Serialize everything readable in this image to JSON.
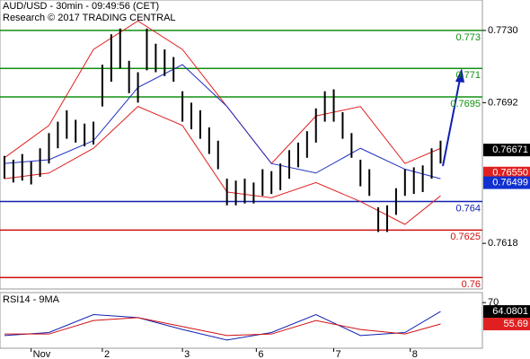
{
  "chart_data": [
    {
      "type": "range-bar",
      "title": "AUD/USD - 30min - 09:49:56 (CET)",
      "subtitle": "Research © 2017 TRADING CENTRAL",
      "xlim": [
        -0.5,
        53.7
      ],
      "ylim": [
        0.7594,
        0.7746
      ],
      "xticks": [
        {
          "value": 3,
          "label": "Nov"
        },
        {
          "value": 11,
          "label": "2"
        },
        {
          "value": 20,
          "label": "3"
        },
        {
          "value": 28.3,
          "label": "6"
        },
        {
          "value": 37,
          "label": "7"
        },
        {
          "value": 45.6,
          "label": "8"
        }
      ],
      "yticks": [
        {
          "value": 0.773,
          "label": "0.7730"
        },
        {
          "value": 0.7692,
          "label": "0.7692"
        },
        {
          "value": 0.7618,
          "label": "0.7618"
        }
      ],
      "bar_color": "#000000",
      "high": [
        0.7664,
        0.7662,
        0.7665,
        0.7661,
        0.7668,
        0.7676,
        0.7682,
        0.7688,
        0.7683,
        0.7681,
        0.7682,
        0.7712,
        0.7728,
        0.7731,
        0.7714,
        0.7708,
        0.7731,
        0.7723,
        0.772,
        0.7716,
        0.7698,
        0.7692,
        0.7688,
        0.7679,
        0.7672,
        0.7652,
        0.7651,
        0.7652,
        0.765,
        0.7657,
        0.7656,
        0.766,
        0.7667,
        0.7671,
        0.7677,
        0.7689,
        0.7698,
        0.7699,
        0.7687,
        0.7676,
        0.7662,
        0.7657,
        0.7637,
        0.7638,
        0.7647,
        0.7657,
        0.7658,
        0.7659,
        0.7668,
        0.7672
      ],
      "low": [
        0.7652,
        0.765,
        0.7651,
        0.7649,
        0.7653,
        0.766,
        0.7668,
        0.7673,
        0.7671,
        0.7669,
        0.767,
        0.769,
        0.7703,
        0.771,
        0.7697,
        0.7692,
        0.7709,
        0.7708,
        0.7706,
        0.7703,
        0.7682,
        0.7678,
        0.7673,
        0.7665,
        0.7657,
        0.7638,
        0.7638,
        0.7639,
        0.7639,
        0.7643,
        0.7644,
        0.7646,
        0.7652,
        0.7658,
        0.7663,
        0.7671,
        0.7682,
        0.7682,
        0.7673,
        0.7663,
        0.7648,
        0.7643,
        0.7624,
        0.7624,
        0.7633,
        0.7643,
        0.7644,
        0.7645,
        0.7652,
        0.766
      ],
      "overlay_x": [
        0,
        5,
        10,
        15,
        20,
        25,
        30,
        35,
        40,
        45,
        49
      ],
      "overlays": [
        {
          "color": "#e02020",
          "values": [
            0.7663,
            0.768,
            0.772,
            0.7735,
            0.772,
            0.769,
            0.766,
            0.7685,
            0.769,
            0.766,
            0.7668
          ]
        },
        {
          "color": "#2030c0",
          "values": [
            0.766,
            0.7662,
            0.7672,
            0.77,
            0.7712,
            0.769,
            0.766,
            0.7655,
            0.7668,
            0.7657,
            0.7652
          ]
        },
        {
          "color": "#e02020",
          "values": [
            0.7652,
            0.7655,
            0.7668,
            0.769,
            0.768,
            0.7645,
            0.7642,
            0.765,
            0.764,
            0.7628,
            0.7643
          ]
        }
      ],
      "levels": [
        {
          "value": 0.773,
          "color": "#109010"
        },
        {
          "value": 0.771,
          "color": "#109010"
        },
        {
          "value": 0.7695,
          "color": "#109010"
        },
        {
          "value": 0.764,
          "color": "#1020b0"
        },
        {
          "value": 0.7625,
          "color": "#d01010"
        },
        {
          "value": 0.76,
          "color": "#d01010"
        }
      ],
      "last_values": [
        {
          "value": 0.76671,
          "color": "#000000"
        },
        {
          "value": 0.7655,
          "value_label": "0.76550",
          "color": "#e02020"
        },
        {
          "value": 0.76499,
          "color": "#1030d0"
        }
      ]
    },
    {
      "type": "line",
      "title": "RSI14 - 9MA",
      "xlim": [
        -0.5,
        53.7
      ],
      "ylim": [
        39.5,
        76.7
      ],
      "yticks": [
        70
      ],
      "x": [
        0,
        5,
        10,
        15,
        20,
        25,
        30,
        35,
        40,
        45,
        49
      ],
      "series": [
        {
          "color": "#1020b0",
          "values": [
            48,
            50,
            62,
            60,
            52,
            45,
            50,
            62,
            48,
            50,
            64.0801
          ]
        },
        {
          "color": "#d01010",
          "values": [
            49,
            49,
            58,
            60,
            54,
            48,
            49,
            58,
            52,
            49,
            55.69
          ]
        }
      ],
      "last_values": [
        {
          "value": 64.0801,
          "color": "#000000"
        },
        {
          "value": 55.69,
          "color": "#e02020"
        }
      ]
    }
  ]
}
